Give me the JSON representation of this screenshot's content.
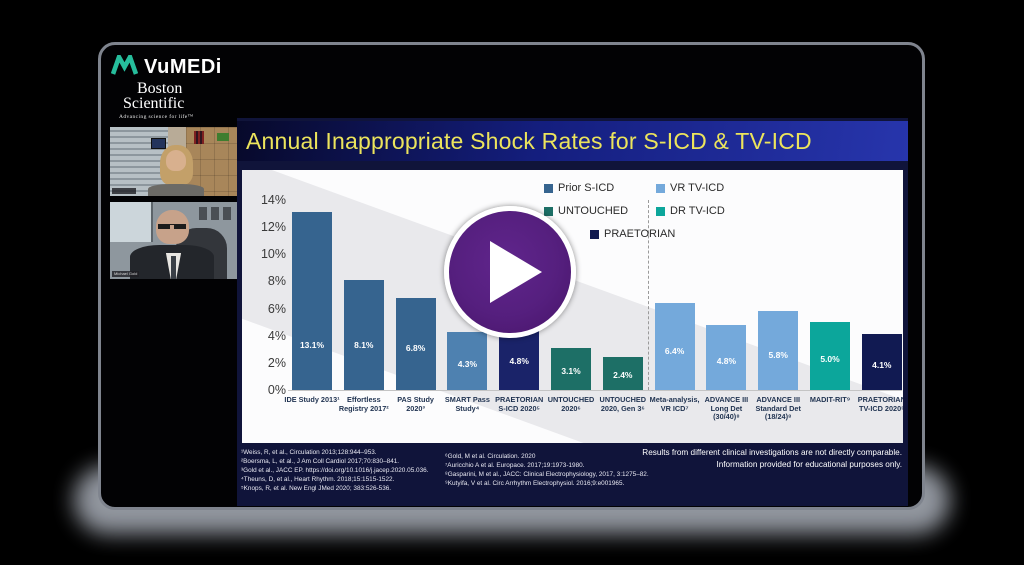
{
  "branding": {
    "vumedi": "VuMEDi",
    "boston_line1": "Boston",
    "boston_line2": "Scientific",
    "tagline": "Advancing science for life™"
  },
  "webcams": [
    {
      "name_label": ""
    },
    {
      "name_label": "Michael Gold"
    }
  ],
  "player": {
    "play_label": ""
  },
  "slide": {
    "title": "Annual Inappropriate Shock Rates for S-ICD & TV-ICD",
    "footnotes_left": [
      "¹Weiss, R, et al., Circulation 2013;128:944–953.",
      "²Boersma, L, et al., J Am Coll Cardiol 2017;70:830–841.",
      "³Gold et al., JACC EP. https://doi.org/10.1016/j.jacep.2020.05.036.",
      "⁴Theuns, D, et al., Heart Rhythm. 2018;15:1515-1522.",
      "⁵Knops, R, et al. New Engl JMed 2020; 383:526-536."
    ],
    "footnotes_mid": [
      "⁶Gold, M et al. Circulation. 2020",
      "⁷Auricchio A et al. Europace. 2017;19:1973-1980.",
      "⁸Gasparini, M et al., JACC: Clinical Electrophysiology, 2017, 3:1275–82.",
      "⁹Kutyifa, V et al. Circ Arrhythm Electrophysiol. 2016;9:e001965."
    ],
    "disclaimer": "Results from different clinical investigations are not directly comparable. Information provided for educational purposes only."
  },
  "chart_data": {
    "type": "bar",
    "title": "Annual Inappropriate Shock Rates for S-ICD & TV-ICD",
    "xlabel": "",
    "ylabel": "",
    "ylim": [
      0,
      14
    ],
    "ytick_step": 2,
    "ytick_suffix": "%",
    "grid": false,
    "legend_position": "top-right",
    "divider_after_index": 6,
    "legend": [
      {
        "label": "Prior S-ICD",
        "color": "#36648F"
      },
      {
        "label": "VR TV-ICD",
        "color": "#74A9DB"
      },
      {
        "label": "UNTOUCHED",
        "color": "#1D6F66"
      },
      {
        "label": "DR TV-ICD",
        "color": "#0CA69B"
      },
      {
        "label": "PRAETORIAN",
        "color": "#10194F"
      }
    ],
    "bars": [
      {
        "category": "IDE Study 2013¹",
        "value": 13.1,
        "label": "13.1%",
        "series": "Prior S-ICD",
        "color": "#36648F"
      },
      {
        "category": "Effortless Registry 2017²",
        "value": 8.1,
        "label": "8.1%",
        "series": "Prior S-ICD",
        "color": "#36648F"
      },
      {
        "category": "PAS Study 2020³",
        "value": 6.8,
        "label": "6.8%",
        "series": "Prior S-ICD",
        "color": "#36648F"
      },
      {
        "category": "SMART Pass Study⁴",
        "value": 4.3,
        "label": "4.3%",
        "series": "Prior S-ICD",
        "color": "#4E81B0"
      },
      {
        "category": "PRAETORIAN S-ICD 2020⁵",
        "value": 4.8,
        "label": "4.8%",
        "series": "PRAETORIAN",
        "color": "#1A2369"
      },
      {
        "category": "UNTOUCHED 2020⁶",
        "value": 3.1,
        "label": "3.1%",
        "series": "UNTOUCHED",
        "color": "#1D6F66"
      },
      {
        "category": "UNTOUCHED 2020, Gen 3⁶",
        "value": 2.4,
        "label": "2.4%",
        "series": "UNTOUCHED",
        "color": "#1D6F66"
      },
      {
        "category": "Meta-analysis, VR ICD⁷",
        "value": 6.4,
        "label": "6.4%",
        "series": "VR TV-ICD",
        "color": "#74A9DB"
      },
      {
        "category": "ADVANCE III Long Det (30/40)⁸",
        "value": 4.8,
        "label": "4.8%",
        "series": "VR TV-ICD",
        "color": "#74A9DB"
      },
      {
        "category": "ADVANCE III Standard Det (18/24)⁸",
        "value": 5.8,
        "label": "5.8%",
        "series": "VR TV-ICD",
        "color": "#74A9DB"
      },
      {
        "category": "MADIT-RIT⁹",
        "value": 5.0,
        "label": "5.0%",
        "series": "DR TV-ICD",
        "color": "#0CA69B"
      },
      {
        "category": "PRAETORIAN TV-ICD 2020⁵",
        "value": 4.1,
        "label": "4.1%",
        "series": "PRAETORIAN",
        "color": "#111A52"
      }
    ]
  }
}
